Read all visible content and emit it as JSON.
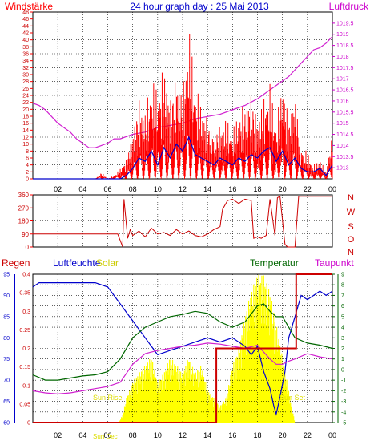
{
  "chart_data": [
    {
      "type": "line",
      "title": "24 hour graph day : 25 Mai 2013",
      "left_label": "Windstärke",
      "right_label": "Luftdruck",
      "x_ticks": [
        "02",
        "04",
        "06",
        "08",
        "10",
        "12",
        "14",
        "16",
        "18",
        "20",
        "22",
        "00"
      ],
      "left_axis": {
        "range": [
          0,
          48
        ],
        "ticks": [
          "0",
          "2",
          "4",
          "6",
          "8",
          "10",
          "12",
          "14",
          "16",
          "18",
          "20",
          "22",
          "24",
          "26",
          "28",
          "30",
          "32",
          "34",
          "36",
          "38",
          "40",
          "42",
          "44",
          "46",
          "48"
        ]
      },
      "right_axis": {
        "range": [
          1012.5,
          1020
        ],
        "ticks": [
          "1013",
          "1013.5",
          "1014",
          "1014.5",
          "1015",
          "1015.5",
          "1016",
          "1016.5",
          "1017",
          "1017.5",
          "1018",
          "1018.5",
          "1019",
          "1019.5"
        ]
      },
      "series": [
        {
          "axis": "right",
          "color": "#d020d0",
          "x": [
            0,
            0.5,
            1,
            1.5,
            2,
            2.5,
            3,
            3.5,
            4,
            4.5,
            5,
            5.5,
            6,
            6.5,
            7,
            7.5,
            8,
            9,
            10,
            11,
            12,
            13,
            14,
            15,
            16,
            17,
            18,
            19,
            20,
            20.5,
            21,
            21.5,
            22,
            22.5,
            23,
            23.5,
            24
          ],
          "values": [
            1015.9,
            1015.8,
            1015.6,
            1015.3,
            1015.0,
            1014.8,
            1014.6,
            1014.3,
            1014.1,
            1013.9,
            1013.9,
            1014.0,
            1014.1,
            1014.3,
            1014.3,
            1014.4,
            1014.5,
            1014.6,
            1014.8,
            1014.9,
            1015.0,
            1015.2,
            1015.3,
            1015.4,
            1015.6,
            1015.8,
            1016.1,
            1016.5,
            1016.9,
            1017.1,
            1017.4,
            1017.7,
            1018.0,
            1018.3,
            1018.4,
            1018.6,
            1018.9
          ]
        },
        {
          "axis": "left",
          "color": "#ff0000",
          "style": "dense-gust-bars",
          "x": [
            0,
            5,
            5.5,
            6,
            6.5,
            7,
            7.5,
            8,
            8.5,
            9,
            9.5,
            10,
            10.5,
            11,
            11.5,
            12,
            12.5,
            13,
            13.5,
            14,
            14.5,
            15,
            15.5,
            16,
            16.5,
            17,
            17.5,
            18,
            18.5,
            19,
            19.5,
            20,
            20.5,
            21,
            21.5,
            22,
            22.5,
            23,
            23.5,
            24
          ],
          "values": [
            0,
            0,
            2,
            0,
            1,
            3,
            6,
            14,
            24,
            20,
            30,
            26,
            34,
            24,
            32,
            26,
            46,
            28,
            22,
            18,
            14,
            16,
            18,
            14,
            20,
            22,
            26,
            18,
            24,
            28,
            16,
            30,
            18,
            26,
            10,
            8,
            4,
            6,
            2,
            14
          ]
        },
        {
          "axis": "left",
          "color": "#0000cc",
          "x": [
            0,
            7,
            7.5,
            8,
            8.5,
            9,
            9.5,
            10,
            10.5,
            11,
            11.5,
            12,
            12.5,
            13,
            13.5,
            14,
            14.5,
            15,
            15.5,
            16,
            16.5,
            17,
            17.5,
            18,
            18.5,
            19,
            19.5,
            20,
            20.5,
            21,
            21.5,
            22,
            22.5,
            23,
            23.5,
            24
          ],
          "values": [
            0,
            0,
            1,
            3,
            6,
            5,
            8,
            4,
            9,
            6,
            10,
            8,
            12,
            7,
            6,
            5,
            4,
            6,
            5,
            4,
            6,
            5,
            7,
            6,
            8,
            9,
            5,
            8,
            4,
            6,
            3,
            2,
            2,
            3,
            1,
            4
          ]
        }
      ]
    },
    {
      "type": "line",
      "x_ticks": [
        "02",
        "04",
        "06",
        "08",
        "10",
        "12",
        "14",
        "16",
        "18",
        "20",
        "22",
        "00"
      ],
      "left_axis": {
        "range": [
          0,
          360
        ],
        "ticks": [
          "0",
          "90",
          "180",
          "270",
          "360"
        ]
      },
      "right_axis": {
        "ticks": [
          "N",
          "W",
          "S",
          "O",
          "N"
        ]
      },
      "series": [
        {
          "color": "#cc0000",
          "x": [
            0,
            6.8,
            7.2,
            7.3,
            7.6,
            7.8,
            8,
            8.5,
            9,
            9.5,
            10,
            10.5,
            11,
            11.5,
            12,
            12.5,
            13,
            13.5,
            14,
            14.5,
            15,
            15.2,
            15.6,
            16,
            16.5,
            17,
            17.5,
            17.7,
            18,
            18.3,
            18.7,
            19,
            19.4,
            19.6,
            19.8,
            20.2,
            20.4,
            21,
            21.3,
            21.6,
            24
          ],
          "values": [
            90,
            90,
            0,
            330,
            60,
            120,
            80,
            110,
            70,
            130,
            90,
            100,
            80,
            120,
            90,
            110,
            80,
            70,
            90,
            120,
            140,
            260,
            320,
            330,
            300,
            330,
            320,
            60,
            70,
            60,
            80,
            330,
            80,
            340,
            350,
            20,
            0,
            0,
            350,
            350,
            350
          ]
        }
      ]
    },
    {
      "type": "line",
      "left_label": "Regen",
      "left2_label": "Luftfeuchte",
      "solar_label": "Solar",
      "right2_label": "Temperatur",
      "right_label": "Taupunkt",
      "sun_rise": "Sun Rise",
      "sun_dec": "Sun Dec",
      "sun_set": "Sun Set",
      "x_ticks": [
        "02",
        "04",
        "06",
        "08",
        "10",
        "12",
        "14",
        "16",
        "18",
        "20",
        "22",
        "00"
      ],
      "rain_axis": {
        "range": [
          0,
          0.4
        ],
        "ticks": [
          "0",
          "0.05",
          "0.1",
          "0.15",
          "0.2",
          "0.25",
          "0.3",
          "0.35",
          "0.4"
        ]
      },
      "humidity_axis": {
        "range": [
          60,
          95
        ],
        "ticks": [
          "60",
          "65",
          "70",
          "75",
          "80",
          "85",
          "90",
          "95"
        ]
      },
      "temp_axis": {
        "range": [
          -5,
          9
        ],
        "ticks": [
          "-5",
          "-4",
          "-3",
          "-2",
          "-1",
          "0",
          "1",
          "2",
          "3",
          "4",
          "5",
          "6",
          "7",
          "8",
          "9"
        ]
      },
      "series": [
        {
          "name": "Luftfeuchte",
          "color": "#0000cc",
          "x": [
            0,
            0.5,
            1,
            2,
            3,
            4,
            5,
            6,
            6.5,
            7,
            7.5,
            8,
            8.5,
            9,
            9.5,
            10,
            11,
            12,
            13,
            14,
            15,
            16,
            17,
            17.5,
            18,
            18.5,
            19,
            19.3,
            19.5,
            19.8,
            20.2,
            20.5,
            21,
            21.5,
            22,
            22.5,
            23,
            23.5,
            24
          ],
          "values": [
            92,
            93,
            93,
            93,
            93,
            93,
            93,
            92,
            90,
            88,
            86,
            84,
            82,
            80,
            78,
            76,
            77,
            78,
            79,
            80,
            79,
            80,
            78,
            76,
            78,
            72,
            68,
            64,
            62,
            66,
            72,
            80,
            85,
            90,
            89,
            90,
            91,
            90,
            91
          ]
        },
        {
          "name": "Temperatur",
          "color": "#006600",
          "x": [
            0,
            1,
            2,
            3,
            4,
            5,
            6,
            7,
            8,
            9,
            10,
            11,
            12,
            13,
            14,
            15,
            16,
            17,
            18,
            18.5,
            19,
            19.5,
            20,
            20.5,
            21,
            22,
            23,
            24
          ],
          "values": [
            -0.5,
            -1,
            -1,
            -0.8,
            -0.6,
            -0.5,
            -0.2,
            1,
            3,
            4,
            4.5,
            5,
            5.2,
            5.5,
            5.3,
            4.5,
            4,
            4.5,
            6,
            6.2,
            5.5,
            5,
            5,
            4,
            3,
            2.5,
            2.3,
            2
          ]
        },
        {
          "name": "Taupunkt",
          "color": "#d020d0",
          "x": [
            0,
            1,
            2,
            3,
            4,
            5,
            6,
            7,
            8,
            9,
            10,
            11,
            12,
            13,
            14,
            15,
            16,
            17,
            18,
            19,
            19.5,
            20,
            20.5,
            21,
            22,
            23,
            24
          ],
          "values": [
            -2,
            -2.2,
            -2.3,
            -2.2,
            -2,
            -1.8,
            -1.6,
            -1.2,
            0.5,
            1.5,
            1.8,
            2,
            2.2,
            2.3,
            2.5,
            2.4,
            2.2,
            2.0,
            2.3,
            1,
            0.5,
            0.5,
            0.8,
            1,
            1.5,
            1.2,
            1
          ]
        },
        {
          "name": "Regen",
          "color": "#cc0000",
          "x": [
            0,
            14.7,
            14.7,
            21.1,
            21.1,
            24
          ],
          "values": [
            0,
            0,
            0.2,
            0.2,
            0.4,
            0.4
          ]
        },
        {
          "name": "Solar",
          "color": "#ffff00",
          "x": [
            0,
            6.9,
            7.2,
            7.5,
            8,
            8.5,
            9,
            9.5,
            10,
            10.5,
            11,
            11.5,
            12,
            12.5,
            13,
            13.5,
            14,
            14.5,
            15,
            15.5,
            16,
            16.5,
            17,
            17.5,
            18,
            18.5,
            19,
            19.5,
            20,
            20.5,
            21,
            24
          ],
          "values": [
            0,
            0,
            1,
            3,
            5,
            6,
            7,
            8,
            5,
            6,
            8,
            7,
            6,
            8,
            6,
            7,
            4,
            3,
            2,
            3,
            7,
            9,
            13,
            16,
            18,
            18,
            16,
            12,
            8,
            4,
            0,
            0
          ]
        }
      ]
    }
  ]
}
